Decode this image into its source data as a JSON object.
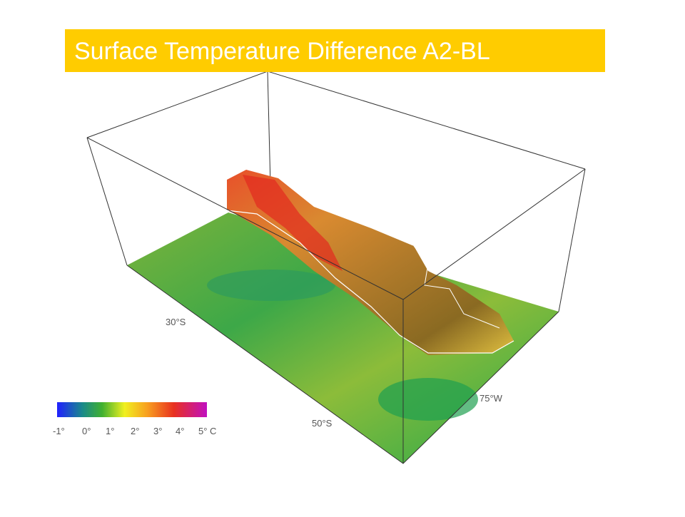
{
  "title": "Surface Temperature Difference A2-BL",
  "axis_labels": {
    "latitude": [
      "30°S",
      "50°S"
    ],
    "longitude": [
      "75°W"
    ]
  },
  "colorbar": {
    "labels": [
      "-1°",
      "0°",
      "1°",
      "2°",
      "3°",
      "4°",
      "5° C"
    ]
  }
}
